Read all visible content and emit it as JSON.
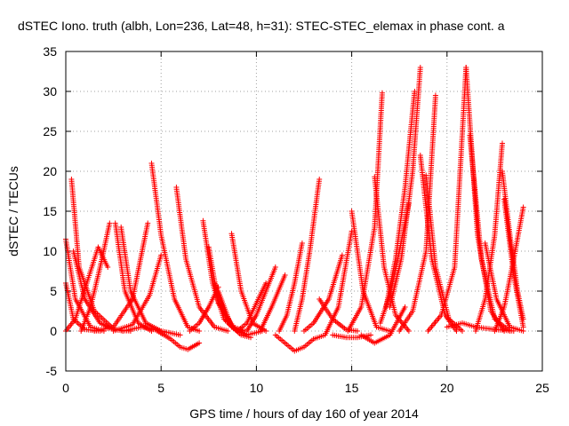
{
  "chart_data": {
    "type": "scatter",
    "title": "dSTEC Iono. truth (albh, Lon=236, Lat=48, h=31): STEC-STEC_elemax in phase cont. a",
    "xlabel": "GPS time / hours of day 160 of year 2014",
    "ylabel": "dSTEC  / TECUs",
    "xlim": [
      0,
      25
    ],
    "ylim": [
      -5,
      35
    ],
    "xticks": [
      0,
      5,
      10,
      15,
      20,
      25
    ],
    "yticks": [
      -5,
      0,
      5,
      10,
      15,
      20,
      25,
      30,
      35
    ],
    "grid": true,
    "marker": "+",
    "color": "#ff0000",
    "series": [
      {
        "x": [
          0.0,
          0.5,
          1.3,
          2.0
        ],
        "y": [
          11.5,
          4.0,
          0.5,
          0.0
        ]
      },
      {
        "x": [
          0.0,
          0.4,
          1.0,
          1.8
        ],
        "y": [
          6.0,
          1.5,
          0.2,
          0.0
        ]
      },
      {
        "x": [
          0.3,
          0.7,
          1.5,
          2.5,
          3.0
        ],
        "y": [
          19.0,
          8.0,
          2.5,
          0.3,
          0.0
        ]
      },
      {
        "x": [
          0.0,
          0.5,
          1.1,
          1.7,
          2.2
        ],
        "y": [
          0.0,
          1.5,
          6.0,
          10.5,
          8.0
        ]
      },
      {
        "x": [
          0.4,
          1.0,
          1.8,
          2.5,
          3.4
        ],
        "y": [
          10.0,
          4.0,
          1.0,
          0.2,
          0.0
        ]
      },
      {
        "x": [
          0.8,
          1.3,
          1.8,
          2.3
        ],
        "y": [
          0.0,
          3.0,
          8.0,
          13.5
        ]
      },
      {
        "x": [
          2.6,
          3.1,
          3.8,
          4.5
        ],
        "y": [
          13.5,
          5.0,
          1.0,
          0.0
        ]
      },
      {
        "x": [
          2.9,
          3.4,
          4.2,
          5.0
        ],
        "y": [
          13.0,
          5.0,
          1.0,
          0.0
        ]
      },
      {
        "x": [
          1.5,
          2.5,
          3.5,
          4.3
        ],
        "y": [
          0.0,
          0.5,
          4.0,
          13.5
        ]
      },
      {
        "x": [
          2.5,
          3.5,
          4.4,
          5.0
        ],
        "y": [
          0.0,
          0.8,
          4.5,
          9.5
        ]
      },
      {
        "x": [
          3.0,
          4.0,
          5.0,
          6.0
        ],
        "y": [
          0.0,
          0.5,
          0.0,
          -0.5
        ]
      },
      {
        "x": [
          4.5,
          5.0,
          5.7,
          6.4,
          7.0
        ],
        "y": [
          21.0,
          12.0,
          4.0,
          0.5,
          0.0
        ]
      },
      {
        "x": [
          4.8,
          5.5,
          6.0,
          6.4,
          7.0
        ],
        "y": [
          0.0,
          -1.0,
          -2.0,
          -2.3,
          -1.5
        ]
      },
      {
        "x": [
          5.8,
          6.3,
          7.0,
          7.8,
          8.5
        ],
        "y": [
          18.0,
          9.0,
          3.0,
          0.5,
          0.0
        ]
      },
      {
        "x": [
          6.5,
          7.0,
          7.5,
          8.0
        ],
        "y": [
          0.0,
          1.0,
          3.0,
          5.5
        ]
      },
      {
        "x": [
          7.2,
          7.7,
          8.3,
          9.0
        ],
        "y": [
          13.8,
          6.0,
          1.5,
          0.0
        ]
      },
      {
        "x": [
          7.5,
          8.0,
          8.8,
          9.4
        ],
        "y": [
          10.5,
          3.5,
          0.5,
          0.0
        ]
      },
      {
        "x": [
          7.8,
          8.5,
          9.2,
          9.7
        ],
        "y": [
          6.0,
          1.0,
          -0.5,
          -0.8
        ]
      },
      {
        "x": [
          8.0,
          8.7,
          9.5,
          10.3
        ],
        "y": [
          5.0,
          0.5,
          -0.5,
          0.0
        ]
      },
      {
        "x": [
          8.7,
          9.2,
          9.8,
          10.5
        ],
        "y": [
          12.2,
          5.0,
          1.0,
          0.0
        ]
      },
      {
        "x": [
          9.0,
          9.5,
          10.0,
          10.5
        ],
        "y": [
          0.0,
          1.0,
          3.5,
          6.0
        ]
      },
      {
        "x": [
          9.5,
          10.0,
          10.5,
          11.0
        ],
        "y": [
          0.0,
          2.0,
          5.0,
          8.0
        ]
      },
      {
        "x": [
          10.2,
          10.8,
          11.5
        ],
        "y": [
          0.0,
          3.0,
          7.0
        ]
      },
      {
        "x": [
          11.0,
          11.5,
          12.0,
          12.5,
          13.0
        ],
        "y": [
          -0.5,
          -1.5,
          -2.5,
          -2.0,
          -1.0
        ]
      },
      {
        "x": [
          11.2,
          11.6,
          12.0,
          12.4
        ],
        "y": [
          0.0,
          2.0,
          6.0,
          11.0
        ]
      },
      {
        "x": [
          12.0,
          12.4,
          12.8,
          13.3
        ],
        "y": [
          0.0,
          4.0,
          10.0,
          19.0
        ]
      },
      {
        "x": [
          12.5,
          13.0,
          13.8,
          14.5
        ],
        "y": [
          0.0,
          1.0,
          4.0,
          9.5
        ]
      },
      {
        "x": [
          13.0,
          13.6,
          14.3,
          15.0
        ],
        "y": [
          -1.0,
          -0.5,
          3.0,
          12.5
        ]
      },
      {
        "x": [
          13.3,
          14.0,
          14.7,
          15.3
        ],
        "y": [
          4.0,
          1.5,
          0.2,
          0.0
        ]
      },
      {
        "x": [
          14.0,
          14.7,
          15.3,
          16.0
        ],
        "y": [
          -0.5,
          -0.8,
          -0.8,
          -0.5
        ]
      },
      {
        "x": [
          14.8,
          15.5,
          16.2,
          16.6
        ],
        "y": [
          0.0,
          3.0,
          13.0,
          29.8
        ]
      },
      {
        "x": [
          15.0,
          15.6,
          16.3,
          17.0
        ],
        "y": [
          15.0,
          5.0,
          0.5,
          0.0
        ]
      },
      {
        "x": [
          15.5,
          16.2,
          17.0,
          17.8
        ],
        "y": [
          -0.5,
          -1.5,
          -0.5,
          3.0
        ]
      },
      {
        "x": [
          16.2,
          16.7,
          17.3,
          18.0
        ],
        "y": [
          19.3,
          8.0,
          2.0,
          0.0
        ]
      },
      {
        "x": [
          16.5,
          17.0,
          17.5,
          18.0
        ],
        "y": [
          1.0,
          4.5,
          10.0,
          16.0
        ]
      },
      {
        "x": [
          16.8,
          17.3,
          17.8,
          18.3
        ],
        "y": [
          3.0,
          9.0,
          18.0,
          30.0
        ]
      },
      {
        "x": [
          17.0,
          17.6,
          18.2,
          18.6
        ],
        "y": [
          3.0,
          9.0,
          20.0,
          33.0
        ]
      },
      {
        "x": [
          17.5,
          18.2,
          18.9,
          19.4
        ],
        "y": [
          0.0,
          2.5,
          10.0,
          29.5
        ]
      },
      {
        "x": [
          18.6,
          19.2,
          19.9,
          20.5
        ],
        "y": [
          22.0,
          9.0,
          2.0,
          0.0
        ]
      },
      {
        "x": [
          18.9,
          19.4,
          20.1,
          20.8
        ],
        "y": [
          19.5,
          8.0,
          1.5,
          0.0
        ]
      },
      {
        "x": [
          19.0,
          19.7,
          20.4,
          21.0
        ],
        "y": [
          0.0,
          2.0,
          8.0,
          33.0
        ]
      },
      {
        "x": [
          21.0,
          21.6,
          22.3,
          23.0
        ],
        "y": [
          33.0,
          12.0,
          2.5,
          0.0
        ]
      },
      {
        "x": [
          21.2,
          21.8,
          22.5,
          23.3
        ],
        "y": [
          24.5,
          9.0,
          1.5,
          0.0
        ]
      },
      {
        "x": [
          21.5,
          22.0,
          22.5,
          22.9
        ],
        "y": [
          0.0,
          4.0,
          12.0,
          23.5
        ]
      },
      {
        "x": [
          22.0,
          22.6,
          23.3,
          24.0
        ],
        "y": [
          11.0,
          4.0,
          0.5,
          0.0
        ]
      },
      {
        "x": [
          22.5,
          23.0,
          23.5,
          24.0
        ],
        "y": [
          0.0,
          3.0,
          9.0,
          15.5
        ]
      },
      {
        "x": [
          22.9,
          23.3,
          23.7,
          24.0
        ],
        "y": [
          20.0,
          12.0,
          5.0,
          1.5
        ]
      },
      {
        "x": [
          23.0,
          23.5,
          24.0
        ],
        "y": [
          16.5,
          7.0,
          0.5
        ]
      },
      {
        "x": [
          20.0,
          20.8,
          21.5,
          22.5,
          23.5
        ],
        "y": [
          0.5,
          1.0,
          0.5,
          0.2,
          0.0
        ]
      }
    ]
  }
}
